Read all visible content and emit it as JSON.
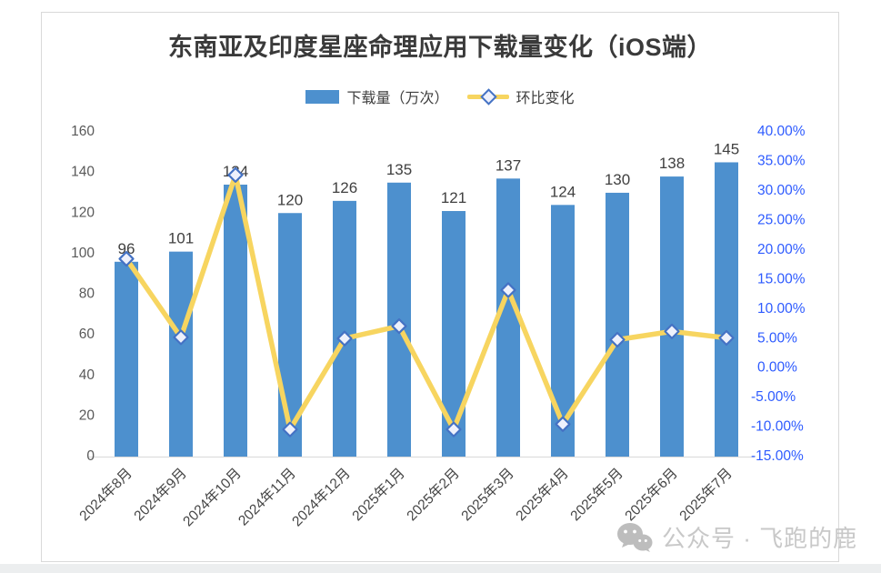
{
  "page": {
    "background": "#ffffff",
    "footer_strip_color": "#eceeef",
    "card_border_color": "#d9d9d9"
  },
  "header": {
    "title": "东南亚及印度星座命理应用下载量变化（iOS端）"
  },
  "legend": {
    "bar_series_label": "下载量（万次）",
    "line_series_label": "环比变化"
  },
  "watermark": {
    "icon": "wechat-icon",
    "text": "公众号 · 飞跑的鹿"
  },
  "colors": {
    "bar_fill": "#4d90ce",
    "line_stroke": "#f7d560",
    "marker_outline": "#4472c4",
    "marker_fill": "#eef1fc",
    "left_axis_text": "#595959",
    "right_axis_text": "#2e5bff",
    "bar_value_text": "#404040",
    "x_label_text": "#454545",
    "axis_line": "#d9d9d9",
    "watermark_text": "#c8c8c8",
    "watermark_icon": "#bdbdbd"
  },
  "chart_data": {
    "type": "bar",
    "subtype": "combo-bar-line-dual-axis",
    "title": "东南亚及印度星座命理应用下载量变化（iOS端）",
    "categories": [
      "2024年8月",
      "2024年9月",
      "2024年10月",
      "2024年11月",
      "2024年12月",
      "2025年1月",
      "2025年2月",
      "2025年3月",
      "2025年4月",
      "2025年5月",
      "2025年6月",
      "2025年7月"
    ],
    "series": [
      {
        "name": "下载量（万次）",
        "type": "bar",
        "axis": "left",
        "values": [
          96,
          101,
          134,
          120,
          126,
          135,
          121,
          137,
          124,
          130,
          138,
          145
        ],
        "data_labels": [
          "96",
          "101",
          "134",
          "120",
          "126",
          "135",
          "121",
          "137",
          "124",
          "130",
          "138",
          "145"
        ]
      },
      {
        "name": "环比变化",
        "type": "line",
        "axis": "right",
        "values_percent": [
          18.5,
          5.2,
          32.7,
          -10.4,
          5.0,
          7.1,
          -10.4,
          13.2,
          -9.5,
          4.8,
          6.2,
          5.1
        ],
        "note": "first point read from plot; rest equal month-over-month change of bar series"
      }
    ],
    "left_axis": {
      "min": 0,
      "max": 160,
      "step": 20,
      "tick_labels": [
        "160",
        "140",
        "120",
        "100",
        "80",
        "60",
        "40",
        "20",
        "0"
      ]
    },
    "right_axis": {
      "min": -15,
      "max": 40,
      "step": 5,
      "tick_labels": [
        "40.00%",
        "35.00%",
        "30.00%",
        "25.00%",
        "20.00%",
        "15.00%",
        "10.00%",
        "5.00%",
        "0.00%",
        "-5.00%",
        "-10.00%",
        "-15.00%"
      ]
    },
    "grid": false,
    "legend_position": "top"
  }
}
